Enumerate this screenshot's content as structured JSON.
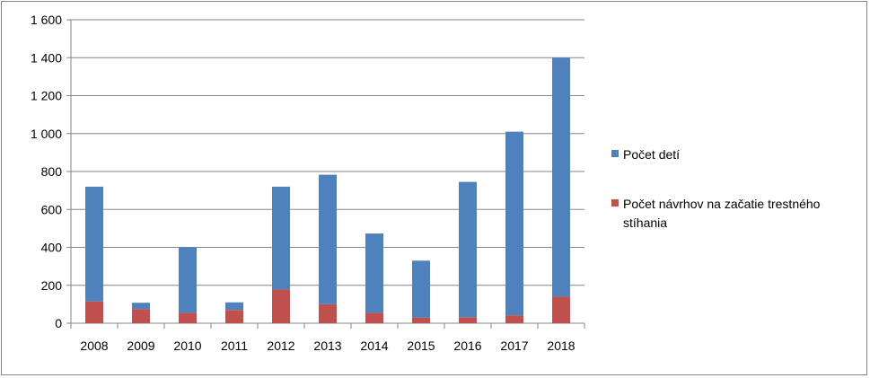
{
  "chart_data": {
    "type": "bar",
    "stacked": true,
    "categories": [
      "2008",
      "2009",
      "2010",
      "2011",
      "2012",
      "2013",
      "2014",
      "2015",
      "2016",
      "2017",
      "2018"
    ],
    "series": [
      {
        "name": "Počet návrhov na začatie trestného stíhania",
        "color": "#c0504d",
        "values": [
          115,
          75,
          55,
          70,
          178,
          100,
          55,
          30,
          32,
          42,
          140
        ]
      },
      {
        "name": "Počet detí",
        "color": "#4f81bd",
        "values": [
          605,
          33,
          345,
          40,
          542,
          683,
          418,
          300,
          713,
          968,
          1260
        ]
      }
    ],
    "legend": {
      "position": "right",
      "entries": [
        {
          "label": "Počet detí",
          "color": "#4f81bd"
        },
        {
          "label_lines": [
            "Počet návrhov na začatie trestného",
            "stíhania"
          ],
          "color": "#c0504d"
        }
      ]
    },
    "ylim": [
      0,
      1600
    ],
    "yticks": [
      0,
      200,
      400,
      600,
      800,
      1000,
      1200,
      1400,
      1600
    ],
    "ytick_labels": [
      "0",
      "200",
      "400",
      "600",
      "800",
      "1 000",
      "1 200",
      "1 400",
      "1 600"
    ],
    "grid": true
  }
}
